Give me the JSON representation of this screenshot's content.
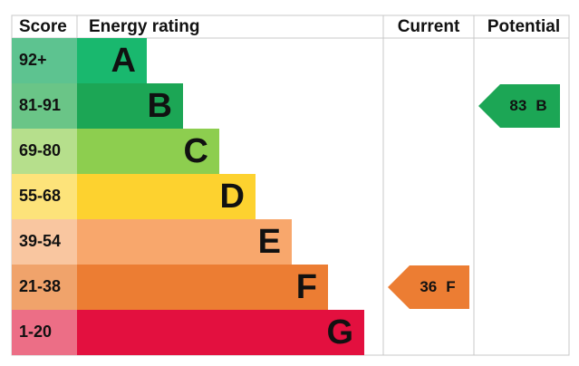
{
  "header": {
    "score": "Score",
    "rating": "Energy rating",
    "current": "Current",
    "potential": "Potential"
  },
  "bands": [
    {
      "score": "92+",
      "letter": "A",
      "color": "#19b86e",
      "score_color": "#5dc390"
    },
    {
      "score": "81-91",
      "letter": "B",
      "color": "#1ca655",
      "score_color": "#6ac587"
    },
    {
      "score": "69-80",
      "letter": "C",
      "color": "#8dce4f",
      "score_color": "#b6df8c"
    },
    {
      "score": "55-68",
      "letter": "D",
      "color": "#fdd22f",
      "score_color": "#fde37a"
    },
    {
      "score": "39-54",
      "letter": "E",
      "color": "#f8a76c",
      "score_color": "#f9c6a0"
    },
    {
      "score": "21-38",
      "letter": "F",
      "color": "#ec7d33",
      "score_color": "#f0a36b"
    },
    {
      "score": "1-20",
      "letter": "G",
      "color": "#e3103f",
      "score_color": "#ec6e86"
    }
  ],
  "current": {
    "score": 36,
    "letter": "F"
  },
  "potential": {
    "score": 83,
    "letter": "B"
  }
}
